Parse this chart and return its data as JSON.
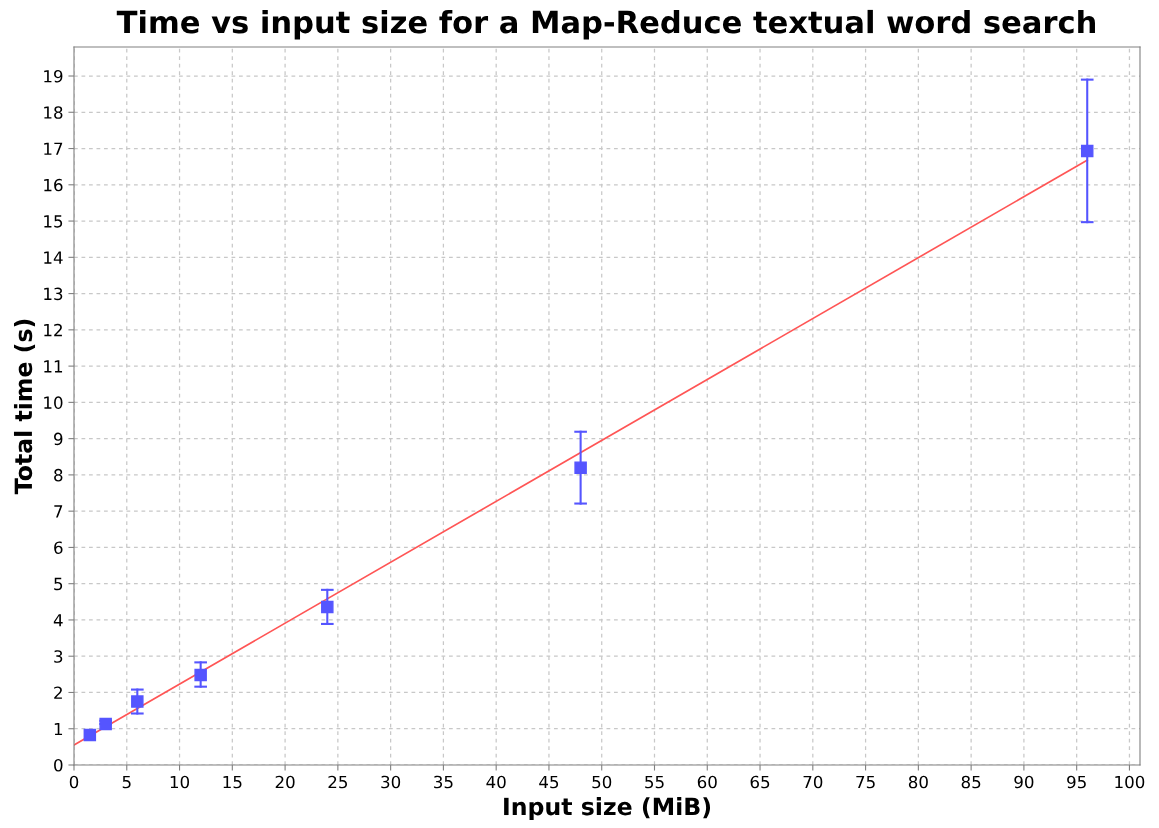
{
  "chart_data": {
    "type": "scatter",
    "title": "Time vs input size for a Map-Reduce textual word search",
    "xlabel": "Input size (MiB)",
    "ylabel": "Total time (s)",
    "series": [
      {
        "color": "#5555ff",
        "marker": "square",
        "x": [
          1.5,
          3,
          6,
          12,
          24,
          48,
          96
        ],
        "values": [
          0.83,
          1.13,
          1.75,
          2.48,
          4.36,
          8.2,
          16.93
        ],
        "errors": [
          null,
          [
            1.13,
            1.22
          ],
          [
            1.42,
            2.08
          ],
          [
            2.16,
            2.83
          ],
          [
            3.89,
            4.83
          ],
          [
            7.21,
            9.19
          ],
          [
            14.97,
            18.9
          ]
        ]
      },
      {
        "type": "line",
        "color": "#ff5555",
        "marker": "none",
        "line_style": "solid",
        "x": [
          0,
          96
        ],
        "values": [
          0.55,
          16.68
        ]
      }
    ],
    "xlim": [
      0,
      101
    ],
    "xticks": [
      0,
      5,
      10,
      15,
      20,
      25,
      30,
      35,
      40,
      45,
      50,
      55,
      60,
      65,
      70,
      75,
      80,
      85,
      90,
      95,
      100
    ],
    "ylim": [
      0,
      19.8
    ],
    "yticks": [
      0,
      1,
      2,
      3,
      4,
      5,
      6,
      7,
      8,
      9,
      10,
      11,
      12,
      13,
      14,
      15,
      16,
      17,
      18,
      19
    ],
    "grid": true,
    "legend": false
  }
}
